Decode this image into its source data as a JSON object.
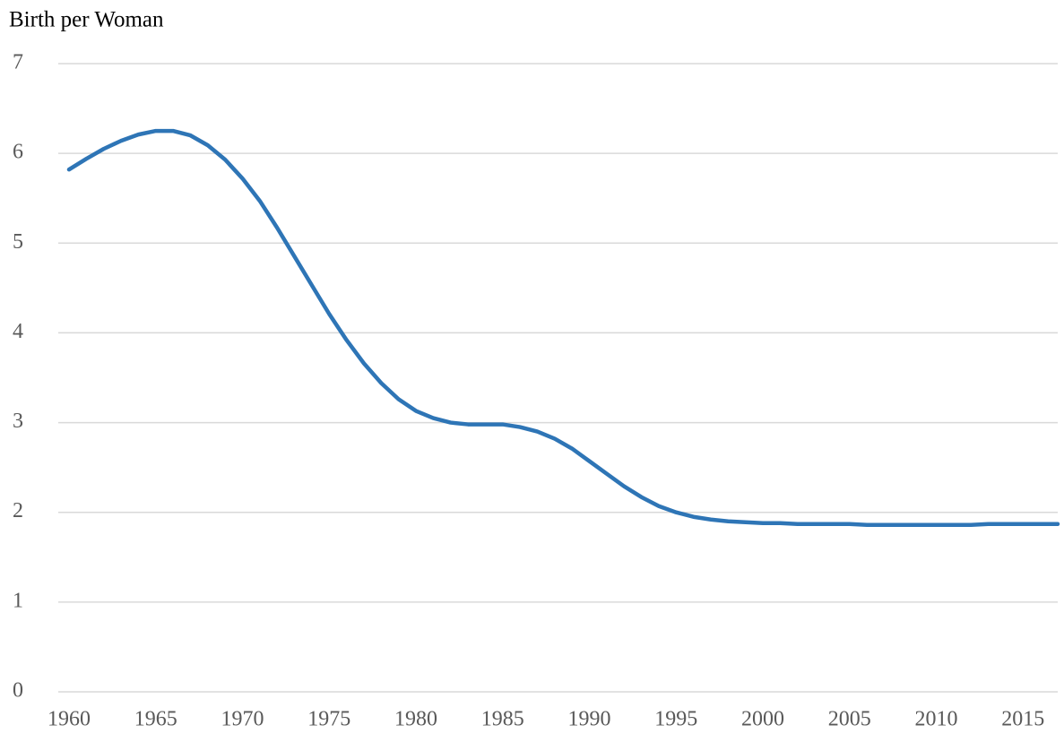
{
  "chart_data": {
    "type": "line",
    "y_label": "Birth per Woman",
    "x": [
      1960,
      1961,
      1962,
      1963,
      1964,
      1965,
      1966,
      1967,
      1968,
      1969,
      1970,
      1971,
      1972,
      1973,
      1974,
      1975,
      1976,
      1977,
      1978,
      1979,
      1980,
      1981,
      1982,
      1983,
      1984,
      1985,
      1986,
      1987,
      1988,
      1989,
      1990,
      1991,
      1992,
      1993,
      1994,
      1995,
      1996,
      1997,
      1998,
      1999,
      2000,
      2001,
      2002,
      2003,
      2004,
      2005,
      2006,
      2007,
      2008,
      2009,
      2010,
      2011,
      2012,
      2013,
      2014,
      2015,
      2016,
      2017
    ],
    "series": [
      {
        "name": "Birth per Woman",
        "color": "#2e75b6",
        "values": [
          5.82,
          5.94,
          6.05,
          6.14,
          6.21,
          6.25,
          6.25,
          6.2,
          6.09,
          5.93,
          5.72,
          5.47,
          5.17,
          4.85,
          4.53,
          4.21,
          3.92,
          3.66,
          3.44,
          3.26,
          3.13,
          3.05,
          3.0,
          2.98,
          2.98,
          2.98,
          2.95,
          2.9,
          2.82,
          2.71,
          2.57,
          2.43,
          2.29,
          2.17,
          2.07,
          2.0,
          1.95,
          1.92,
          1.9,
          1.89,
          1.88,
          1.88,
          1.87,
          1.87,
          1.87,
          1.87,
          1.86,
          1.86,
          1.86,
          1.86,
          1.86,
          1.86,
          1.86,
          1.87,
          1.87,
          1.87,
          1.87,
          1.87
        ]
      }
    ],
    "xlim": [
      1960,
      2017
    ],
    "xticks": [
      1960,
      1965,
      1970,
      1975,
      1980,
      1985,
      1990,
      1995,
      2000,
      2005,
      2010,
      2015
    ],
    "ylim": [
      0,
      7
    ],
    "yticks": [
      0,
      1,
      2,
      3,
      4,
      5,
      6,
      7
    ],
    "grid": true
  }
}
